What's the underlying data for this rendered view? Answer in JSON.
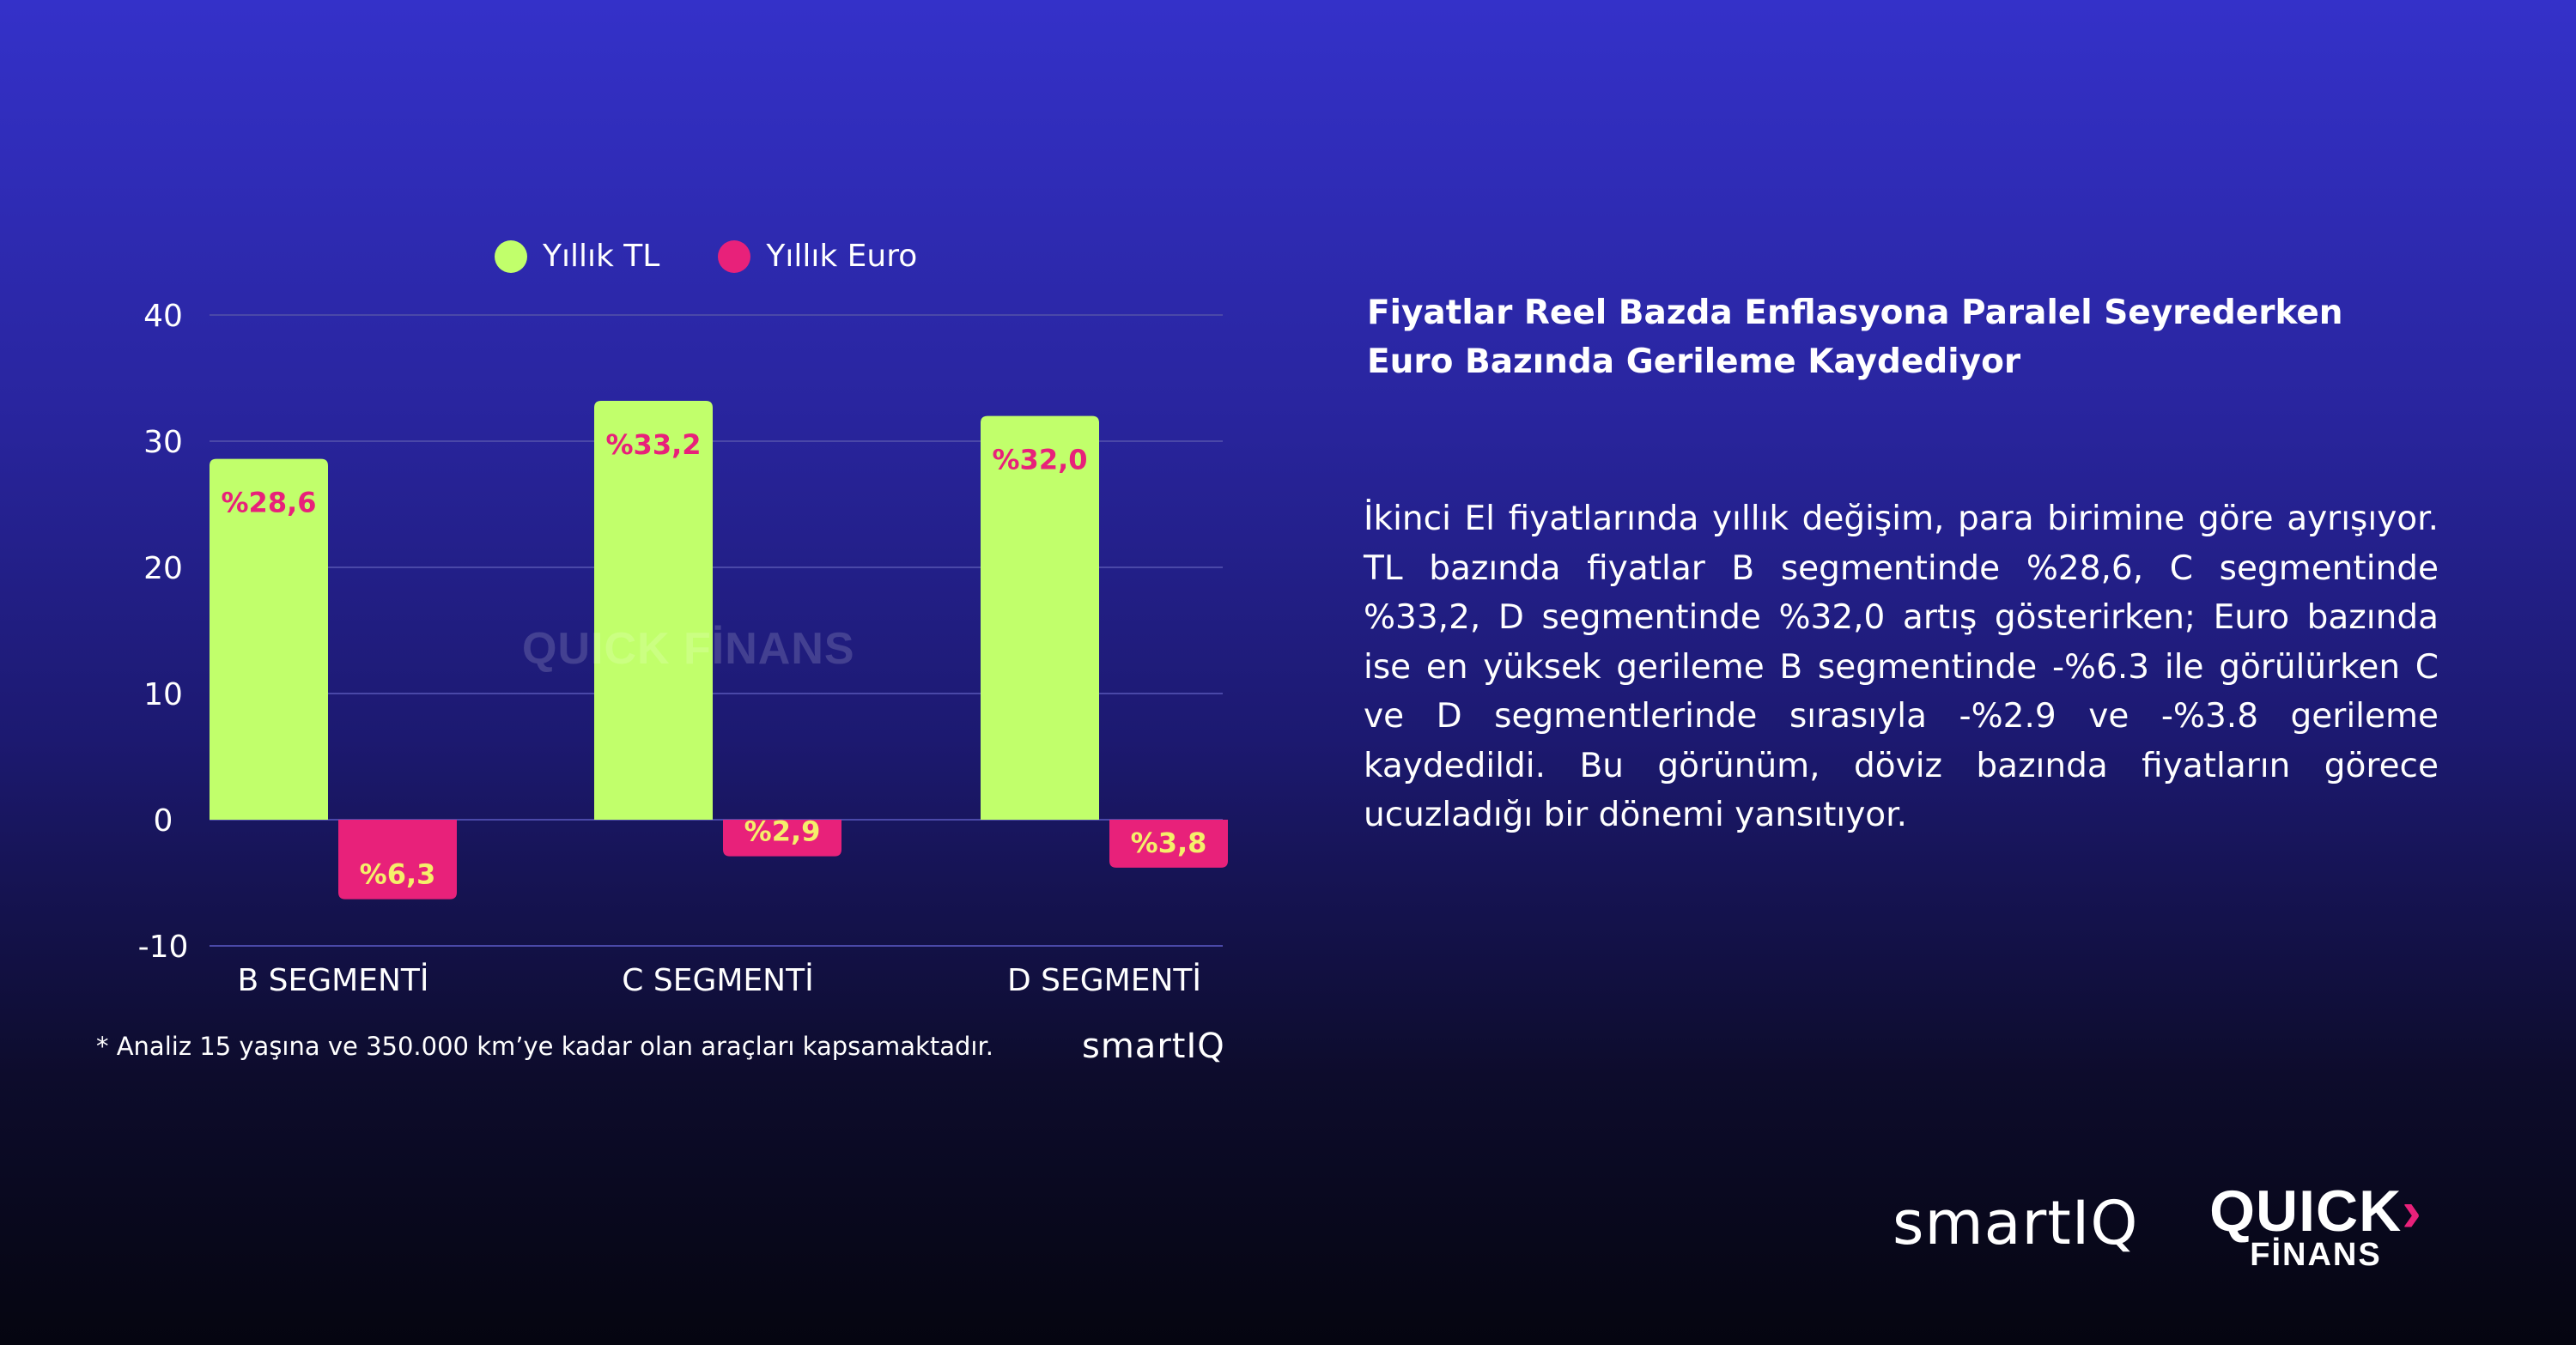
{
  "chart_data": {
    "type": "bar",
    "categories": [
      "B SEGMENTİ",
      "C SEGMENTİ",
      "D SEGMENTİ"
    ],
    "series": [
      {
        "name": "Yıllık TL",
        "values": [
          28.6,
          33.2,
          32.0
        ],
        "labels": [
          "%28,6",
          "%33,2",
          "%32,0"
        ],
        "color": "#c1ff6b",
        "label_color": "#e8217a"
      },
      {
        "name": "Yıllık Euro",
        "values": [
          -6.3,
          -2.9,
          -3.8
        ],
        "labels": [
          "%6,3",
          "%2,9",
          "%3,8"
        ],
        "color": "#e8217a",
        "label_color": "#f5ef6a"
      }
    ],
    "yticks": [
      "40",
      "30",
      "20",
      "10",
      "0",
      "-10"
    ],
    "ylim": [
      -10,
      40
    ],
    "grid": true,
    "legend": "top-center",
    "footnote": "* Analiz 15 yaşına ve 350.000 km’ye kadar olan araçları kapsamaktadır."
  },
  "colors": {
    "tl": "#c1ff6b",
    "euro": "#e8217a",
    "grid": "#4a48a8"
  },
  "watermark": "QUICK FİNANS",
  "chart_brand": "smartIQ",
  "article": {
    "heading_line1": "Fiyatlar Reel Bazda Enflasyona Paralel Seyrederken",
    "heading_line2": "Euro Bazında Gerileme Kaydediyor",
    "body": "İkinci El fiyatlarında yıllık değişim, para birimine göre ayrışıyor. TL bazında fiyatlar B segmentinde %28,6, C segmentinde %33,2, D segmentinde %32,0 artış gösterirken; Euro bazında ise en yüksek gerileme B segmentinde -%6.3 ile görülürken C ve D segmentlerinde sırasıyla -%2.9 ve -%3.8 gerileme kaydedildi. Bu görünüm, döviz bazında fiyatların görece ucuzladığı bir dönemi yansıtıyor."
  },
  "logos": {
    "smartiq": "smartIQ",
    "quick_line1": "QUICK",
    "quick_line2": "FİNANS"
  }
}
